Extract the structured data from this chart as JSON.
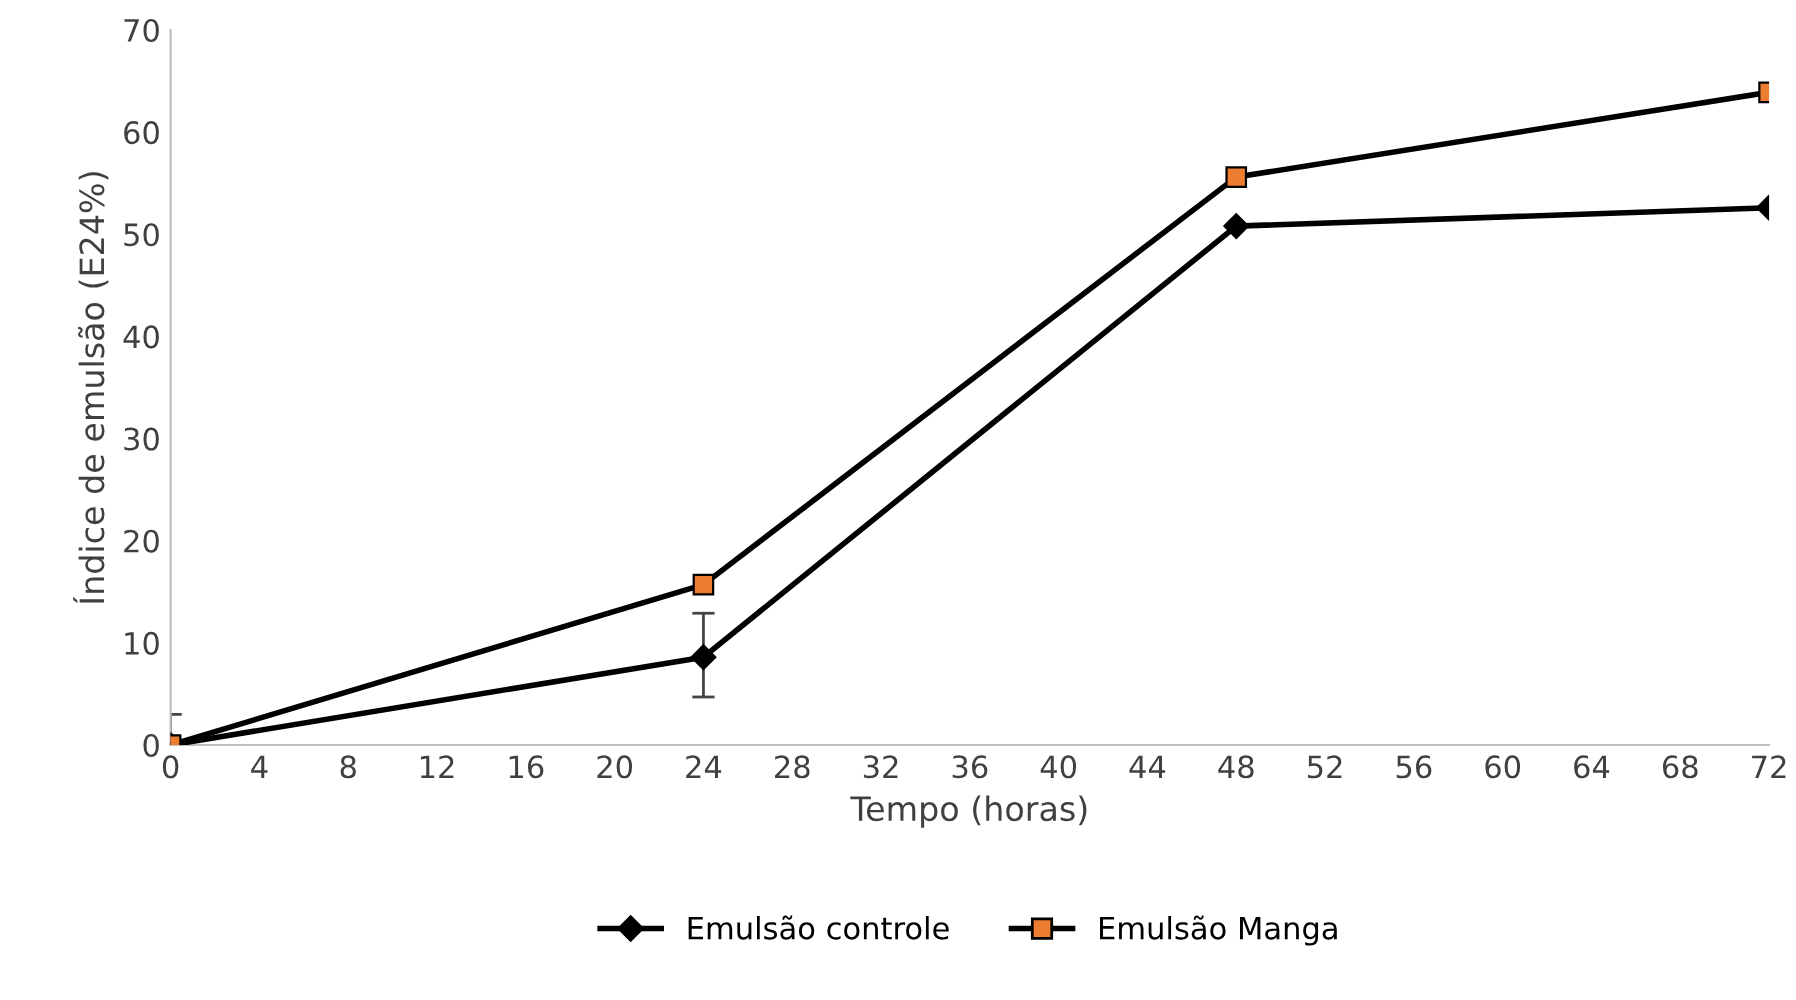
{
  "chart_data": {
    "type": "line",
    "xlabel": "Tempo (horas)",
    "ylabel": "Índice de emulsão (E24%)",
    "x": [
      0,
      24,
      48,
      72
    ],
    "series": [
      {
        "name": "Emulsão controle",
        "color": "#000000",
        "marker": "diamond",
        "values": [
          0,
          8.6,
          50.8,
          52.6
        ],
        "errors": [
          [
            0,
            3
          ],
          [
            4.7,
            12.9
          ],
          null,
          null
        ]
      },
      {
        "name": "Emulsão Manga",
        "color": "#ed7d31",
        "marker": "square",
        "values": [
          0,
          15.7,
          55.6,
          63.9
        ]
      }
    ],
    "xlim": [
      0,
      72
    ],
    "xticks": [
      0,
      4,
      8,
      12,
      16,
      20,
      24,
      28,
      32,
      36,
      40,
      44,
      48,
      52,
      56,
      60,
      64,
      68,
      72
    ],
    "ylim": [
      0,
      70
    ],
    "yticks": [
      0,
      10,
      20,
      30,
      40,
      50,
      60,
      70
    ],
    "grid": false,
    "legend": "bottom",
    "line_style": "solid"
  }
}
